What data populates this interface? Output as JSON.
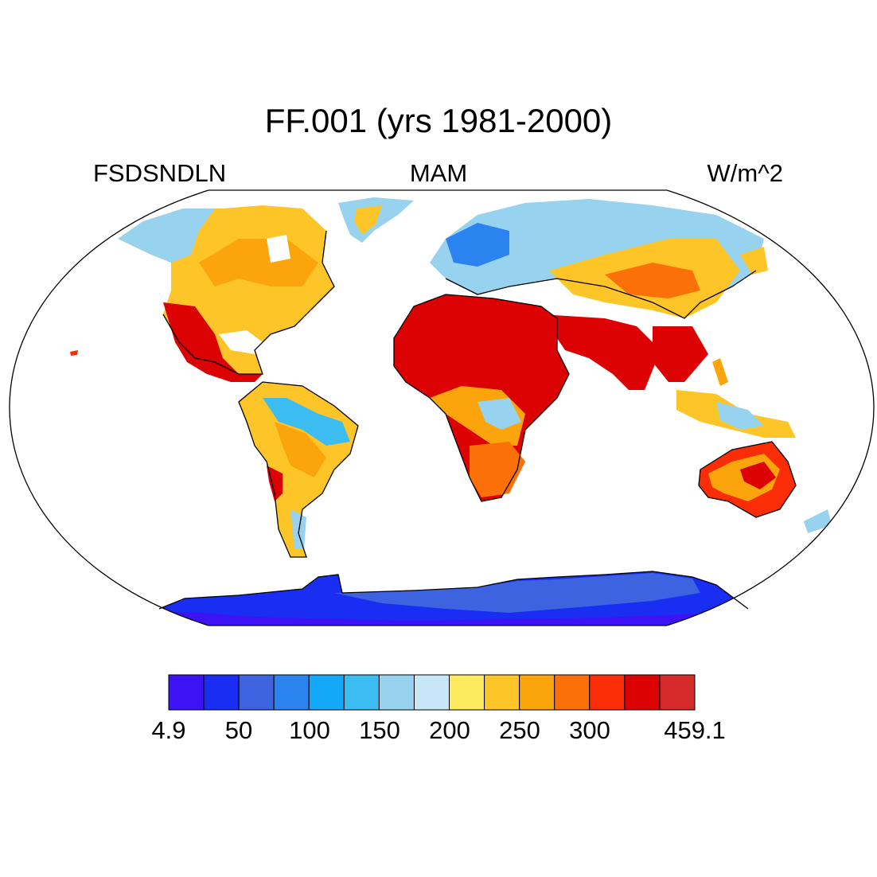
{
  "title": "FF.001 (yrs 1981-2000)",
  "left_label": "FSDSNDLN",
  "center_label": "MAM",
  "right_label": "W/m^2",
  "colorbar": {
    "colors": [
      "#3d13f5",
      "#1a2df2",
      "#3d63e0",
      "#2b83f0",
      "#13a8f8",
      "#3bbdf2",
      "#97d2ee",
      "#c8e7f6",
      "#fceb5e",
      "#fdc527",
      "#fca40c",
      "#fb7009",
      "#fb2d06",
      "#dc0204",
      "#d52a2a"
    ],
    "labels": [
      "4.9",
      "50",
      "100",
      "150",
      "200",
      "250",
      "300",
      "459.1"
    ]
  }
}
